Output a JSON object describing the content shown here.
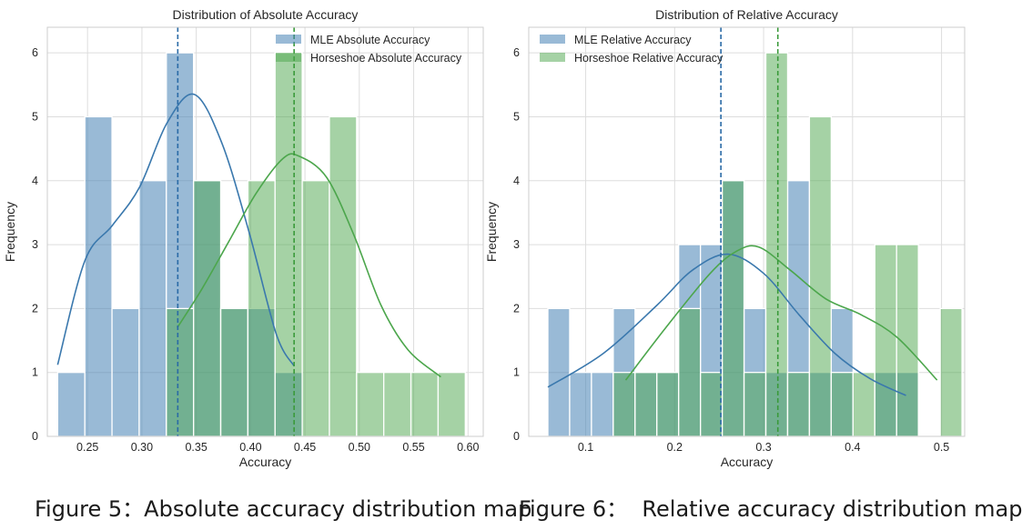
{
  "captions": {
    "left": "Figure 5：Absolute accuracy distribution map",
    "right": "Figure 6：  Relative accuracy distribution map"
  },
  "chart_data": [
    {
      "type": "histogram-kde",
      "title": "Distribution of Absolute Accuracy",
      "xlabel": "Accuracy",
      "ylabel": "Frequency",
      "xlim": [
        0.213,
        0.614
      ],
      "ylim": [
        0,
        6.4
      ],
      "xticks": [
        0.25,
        0.3,
        0.35,
        0.4,
        0.45,
        0.5,
        0.55,
        0.6
      ],
      "xtick_labels": [
        "0.25",
        "0.30",
        "0.35",
        "0.40",
        "0.45",
        "0.50",
        "0.55",
        "0.60"
      ],
      "yticks": [
        0,
        1,
        2,
        3,
        4,
        5,
        6
      ],
      "grid": true,
      "legend_position": "top-right",
      "colors": {
        "mle": "#4682b4",
        "horseshoe": "#4ca64c"
      },
      "series": [
        {
          "name": "MLE Absolute Accuracy",
          "bin_edges": [
            0.2225,
            0.2475,
            0.2725,
            0.2975,
            0.3225,
            0.3475,
            0.3725,
            0.3975,
            0.4225,
            0.4475
          ],
          "counts": [
            1,
            5,
            2,
            4,
            6,
            4,
            2,
            2,
            1
          ],
          "mean": 0.333,
          "kde": {
            "x": [
              0.2225,
              0.2476,
              0.2728,
              0.2979,
              0.323,
              0.3482,
              0.3733,
              0.3985,
              0.4236,
              0.44
            ],
            "y": [
              1.12,
              2.75,
              3.3,
              3.9,
              4.9,
              5.35,
              4.6,
              3.2,
              1.6,
              1.1
            ]
          }
        },
        {
          "name": "Horseshoe Absolute Accuracy",
          "bin_edges": [
            0.3225,
            0.3475,
            0.3725,
            0.3975,
            0.4225,
            0.4475,
            0.4725,
            0.4975,
            0.5225,
            0.5475,
            0.5725,
            0.5975
          ],
          "counts": [
            2,
            4,
            2,
            4,
            6,
            4,
            5,
            1,
            1,
            1,
            1
          ],
          "mean": 0.44,
          "kde": {
            "x": [
              0.3325,
              0.355,
              0.38,
              0.405,
              0.43,
              0.445,
              0.47,
              0.495,
              0.52,
              0.545,
              0.575
            ],
            "y": [
              1.7,
              2.3,
              3.05,
              3.8,
              4.35,
              4.38,
              4.05,
              3.15,
              2.05,
              1.35,
              0.93
            ]
          }
        }
      ]
    },
    {
      "type": "histogram-kde",
      "title": "Distribution of Relative Accuracy",
      "xlabel": "Accuracy",
      "ylabel": "Frequency",
      "xlim": [
        0.036,
        0.526
      ],
      "ylim": [
        0,
        6.4
      ],
      "xticks": [
        0.1,
        0.2,
        0.3,
        0.4,
        0.5
      ],
      "xtick_labels": [
        "0.1",
        "0.2",
        "0.3",
        "0.4",
        "0.5"
      ],
      "yticks": [
        0,
        1,
        2,
        3,
        4,
        5,
        6
      ],
      "grid": true,
      "legend_position": "top-left",
      "colors": {
        "mle": "#4682b4",
        "horseshoe": "#4ca64c"
      },
      "series": [
        {
          "name": "MLE Relative Accuracy",
          "bin_edges": [
            0.0575,
            0.082,
            0.1065,
            0.131,
            0.1555,
            0.18,
            0.2045,
            0.229,
            0.2535,
            0.278,
            0.3025,
            0.327,
            0.3515,
            0.376,
            0.4005,
            0.425,
            0.4495,
            0.474
          ],
          "counts": [
            2,
            1,
            1,
            2,
            1,
            1,
            3,
            3,
            4,
            2,
            1,
            4,
            1,
            2,
            0,
            1,
            1
          ],
          "mean": 0.252,
          "kde": {
            "x": [
              0.0575,
              0.12,
              0.18,
              0.22,
              0.26,
              0.3,
              0.34,
              0.38,
              0.42,
              0.46
            ],
            "y": [
              0.77,
              1.3,
              2.05,
              2.6,
              2.85,
              2.55,
              1.9,
              1.3,
              0.9,
              0.64
            ]
          }
        },
        {
          "name": "Horseshoe Relative Accuracy",
          "bin_edges": [
            0.131,
            0.1555,
            0.18,
            0.2045,
            0.229,
            0.2535,
            0.278,
            0.3025,
            0.327,
            0.3515,
            0.376,
            0.4005,
            0.425,
            0.4495,
            0.474,
            0.4985,
            0.523
          ],
          "counts": [
            1,
            1,
            1,
            2,
            1,
            4,
            1,
            6,
            1,
            5,
            1,
            1,
            3,
            3,
            0,
            2
          ],
          "mean": 0.316,
          "kde": {
            "x": [
              0.145,
              0.19,
              0.24,
              0.27,
              0.295,
              0.33,
              0.37,
              0.41,
              0.45,
              0.495
            ],
            "y": [
              0.88,
              1.7,
              2.55,
              2.9,
              2.96,
              2.6,
              2.15,
              1.9,
              1.55,
              0.88
            ]
          }
        }
      ]
    }
  ]
}
